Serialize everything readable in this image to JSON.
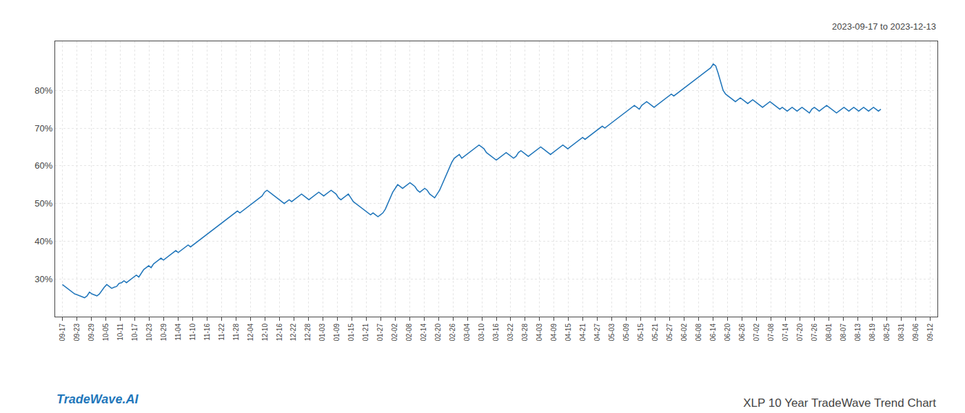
{
  "chart_data": {
    "type": "line",
    "title": "XLP 10 Year TradeWave Trend Chart",
    "subtitle": "2023-09-17 to 2023-12-13",
    "annotations": [
      "TradeWave.AI"
    ],
    "color": "#2277bb",
    "grid": true,
    "xlim": [
      -2.9333,
      354.9333
    ],
    "xticks": [
      {
        "value": 0,
        "label": "09-17"
      },
      {
        "value": 5.8667,
        "label": "09-23"
      },
      {
        "value": 11.7333,
        "label": "09-29"
      },
      {
        "value": 17.6,
        "label": "10-05"
      },
      {
        "value": 23.4667,
        "label": "10-11"
      },
      {
        "value": 29.3333,
        "label": "10-17"
      },
      {
        "value": 35.2,
        "label": "10-23"
      },
      {
        "value": 41.0667,
        "label": "10-29"
      },
      {
        "value": 46.9333,
        "label": "11-04"
      },
      {
        "value": 52.8,
        "label": "11-10"
      },
      {
        "value": 58.6667,
        "label": "11-16"
      },
      {
        "value": 64.5333,
        "label": "11-22"
      },
      {
        "value": 70.4,
        "label": "11-28"
      },
      {
        "value": 76.2667,
        "label": "12-04"
      },
      {
        "value": 82.1333,
        "label": "12-10"
      },
      {
        "value": 88,
        "label": "12-16"
      },
      {
        "value": 93.8667,
        "label": "12-22"
      },
      {
        "value": 99.7333,
        "label": "12-28"
      },
      {
        "value": 105.6,
        "label": "01-03"
      },
      {
        "value": 111.4667,
        "label": "01-09"
      },
      {
        "value": 117.3333,
        "label": "01-15"
      },
      {
        "value": 123.2,
        "label": "01-21"
      },
      {
        "value": 129.0667,
        "label": "01-27"
      },
      {
        "value": 134.9333,
        "label": "02-02"
      },
      {
        "value": 140.8,
        "label": "02-08"
      },
      {
        "value": 146.6667,
        "label": "02-14"
      },
      {
        "value": 152.5333,
        "label": "02-20"
      },
      {
        "value": 158.4,
        "label": "02-26"
      },
      {
        "value": 164.2667,
        "label": "03-04"
      },
      {
        "value": 170.1333,
        "label": "03-10"
      },
      {
        "value": 176,
        "label": "03-16"
      },
      {
        "value": 181.8667,
        "label": "03-22"
      },
      {
        "value": 187.7333,
        "label": "03-28"
      },
      {
        "value": 193.6,
        "label": "04-03"
      },
      {
        "value": 199.4667,
        "label": "04-09"
      },
      {
        "value": 205.3333,
        "label": "04-15"
      },
      {
        "value": 211.2,
        "label": "04-21"
      },
      {
        "value": 217.0667,
        "label": "04-27"
      },
      {
        "value": 222.9333,
        "label": "05-03"
      },
      {
        "value": 228.8,
        "label": "05-09"
      },
      {
        "value": 234.6667,
        "label": "05-15"
      },
      {
        "value": 240.5333,
        "label": "05-21"
      },
      {
        "value": 246.4,
        "label": "05-27"
      },
      {
        "value": 252.2667,
        "label": "06-02"
      },
      {
        "value": 258.1333,
        "label": "06-08"
      },
      {
        "value": 264,
        "label": "06-14"
      },
      {
        "value": 269.8667,
        "label": "06-20"
      },
      {
        "value": 275.7333,
        "label": "06-26"
      },
      {
        "value": 281.6,
        "label": "07-02"
      },
      {
        "value": 287.4667,
        "label": "07-08"
      },
      {
        "value": 293.3333,
        "label": "07-14"
      },
      {
        "value": 299.2,
        "label": "07-20"
      },
      {
        "value": 305.0667,
        "label": "07-26"
      },
      {
        "value": 310.9333,
        "label": "08-01"
      },
      {
        "value": 316.8,
        "label": "08-07"
      },
      {
        "value": 322.6667,
        "label": "08-13"
      },
      {
        "value": 328.5333,
        "label": "08-19"
      },
      {
        "value": 334.4,
        "label": "08-25"
      },
      {
        "value": 340.2667,
        "label": "08-31"
      },
      {
        "value": 346.1333,
        "label": "09-06"
      },
      {
        "value": 352,
        "label": "09-12"
      }
    ],
    "ylim": [
      20,
      93
    ],
    "yticks": [
      {
        "value": 30,
        "label": "30%"
      },
      {
        "value": 40,
        "label": "40%"
      },
      {
        "value": 50,
        "label": "50%"
      },
      {
        "value": 60,
        "label": "60%"
      },
      {
        "value": 70,
        "label": "70%"
      },
      {
        "value": 80,
        "label": "80%"
      }
    ],
    "values": [
      28.5,
      28.0,
      27.5,
      27.0,
      26.5,
      26.0,
      25.8,
      25.5,
      25.2,
      25.0,
      25.5,
      26.5,
      26.0,
      25.8,
      25.5,
      26.0,
      27.0,
      27.8,
      28.5,
      28.0,
      27.5,
      27.8,
      28.0,
      28.8,
      29.0,
      29.5,
      29.0,
      29.5,
      30.0,
      30.5,
      31.0,
      30.5,
      31.5,
      32.5,
      33.0,
      33.5,
      33.0,
      34.0,
      34.5,
      35.0,
      35.5,
      35.0,
      35.5,
      36.0,
      36.5,
      37.0,
      37.5,
      37.0,
      37.5,
      38.0,
      38.5,
      39.0,
      38.5,
      39.0,
      39.5,
      40.0,
      40.5,
      41.0,
      41.5,
      42.0,
      42.5,
      43.0,
      43.5,
      44.0,
      44.5,
      45.0,
      45.5,
      46.0,
      46.5,
      47.0,
      47.5,
      48.0,
      47.5,
      48.0,
      48.5,
      49.0,
      49.5,
      50.0,
      50.5,
      51.0,
      51.5,
      52.0,
      53.0,
      53.5,
      53.0,
      52.5,
      52.0,
      51.5,
      51.0,
      50.5,
      50.0,
      50.5,
      51.0,
      50.5,
      51.0,
      51.5,
      52.0,
      52.5,
      52.0,
      51.5,
      51.0,
      51.5,
      52.0,
      52.5,
      53.0,
      52.5,
      52.0,
      52.5,
      53.0,
      53.5,
      53.0,
      52.5,
      51.5,
      51.0,
      51.5,
      52.0,
      52.5,
      51.5,
      50.5,
      50.0,
      49.5,
      49.0,
      48.5,
      48.0,
      47.5,
      47.0,
      47.5,
      47.0,
      46.5,
      47.0,
      47.5,
      48.5,
      50.0,
      51.5,
      53.0,
      54.0,
      55.0,
      54.5,
      54.0,
      54.5,
      55.0,
      55.5,
      55.0,
      54.5,
      53.5,
      53.0,
      53.5,
      54.0,
      53.5,
      52.5,
      52.0,
      51.5,
      52.5,
      53.5,
      55.0,
      56.5,
      58.0,
      59.5,
      61.0,
      62.0,
      62.5,
      63.0,
      62.0,
      62.5,
      63.0,
      63.5,
      64.0,
      64.5,
      65.0,
      65.5,
      65.0,
      64.5,
      63.5,
      63.0,
      62.5,
      62.0,
      61.5,
      62.0,
      62.5,
      63.0,
      63.5,
      63.0,
      62.5,
      62.0,
      62.5,
      63.5,
      64.0,
      63.5,
      63.0,
      62.5,
      63.0,
      63.5,
      64.0,
      64.5,
      65.0,
      64.5,
      64.0,
      63.5,
      63.0,
      63.5,
      64.0,
      64.5,
      65.0,
      65.5,
      65.0,
      64.5,
      65.0,
      65.5,
      66.0,
      66.5,
      67.0,
      67.5,
      67.0,
      67.5,
      68.0,
      68.5,
      69.0,
      69.5,
      70.0,
      70.5,
      70.0,
      70.5,
      71.0,
      71.5,
      72.0,
      72.5,
      73.0,
      73.5,
      74.0,
      74.5,
      75.0,
      75.5,
      76.0,
      75.5,
      75.0,
      76.0,
      76.5,
      77.0,
      76.5,
      76.0,
      75.5,
      76.0,
      76.5,
      77.0,
      77.5,
      78.0,
      78.5,
      79.0,
      78.5,
      79.0,
      79.5,
      80.0,
      80.5,
      81.0,
      81.5,
      82.0,
      82.5,
      83.0,
      83.5,
      84.0,
      84.5,
      85.0,
      85.5,
      86.0,
      87.0,
      86.5,
      84.5,
      82.0,
      80.0,
      79.0,
      78.5,
      78.0,
      77.5,
      77.0,
      77.5,
      78.0,
      77.5,
      77.0,
      76.5,
      77.0,
      77.5,
      77.0,
      76.5,
      76.0,
      75.5,
      76.0,
      76.5,
      77.0,
      76.5,
      76.0,
      75.5,
      75.0,
      75.5,
      75.0,
      74.5,
      75.0,
      75.5,
      75.0,
      74.5,
      75.0,
      75.5,
      75.0,
      74.5,
      74.0,
      75.0,
      75.5,
      75.0,
      74.5,
      75.0,
      75.5,
      76.0,
      75.5,
      75.0,
      74.5,
      74.0,
      74.5,
      75.0,
      75.5,
      75.0,
      74.5,
      75.0,
      75.5,
      75.0,
      74.5,
      75.0,
      75.5,
      75.0,
      74.5,
      75.0,
      75.5,
      75.0,
      74.5,
      75.0
    ]
  }
}
